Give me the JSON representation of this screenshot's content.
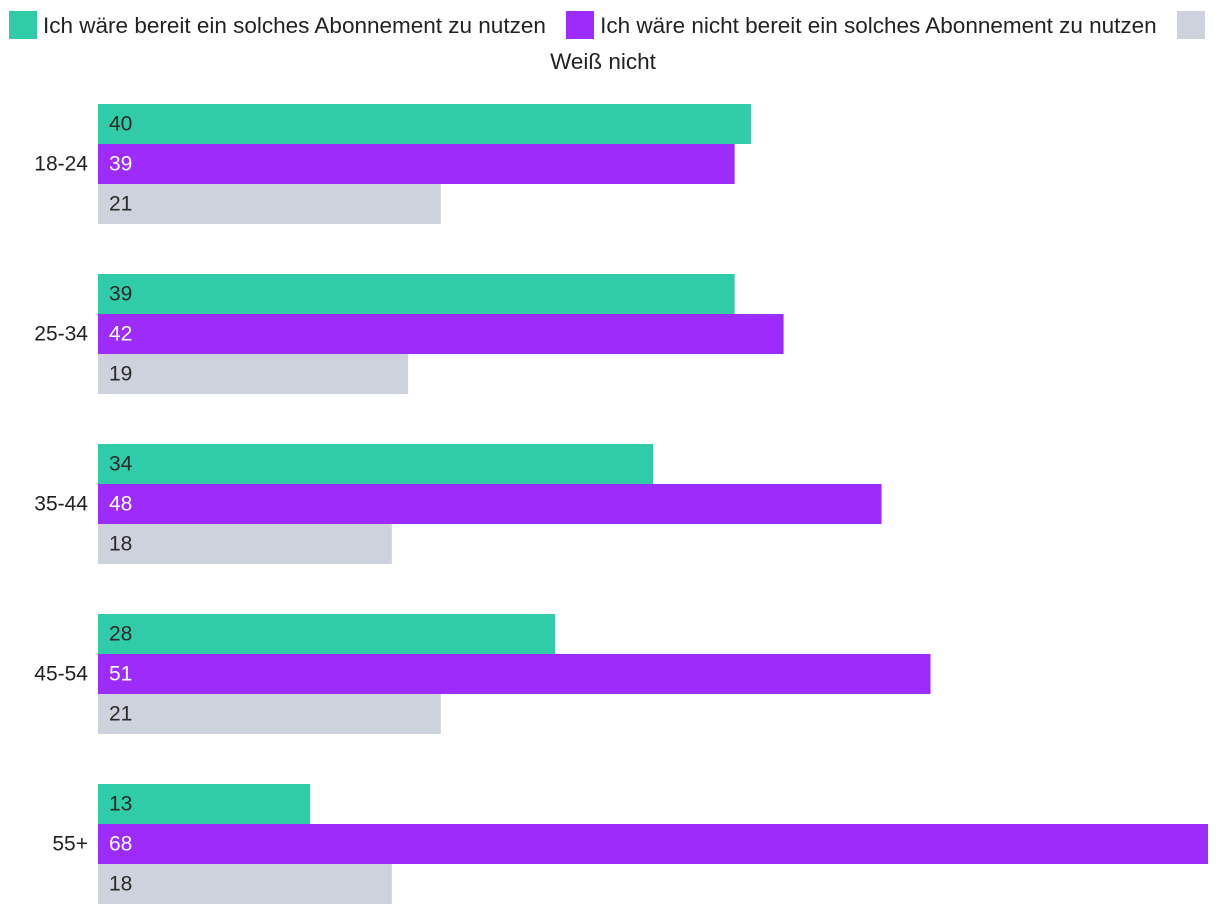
{
  "chart_data": {
    "type": "bar",
    "orientation": "horizontal",
    "categories": [
      "18-24",
      "25-34",
      "35-44",
      "45-54",
      "55+"
    ],
    "series": [
      {
        "name": "Ich wäre bereit ein solches Abonnement zu nutzen",
        "color": "#30cba7",
        "label_color": "#2a2a2a",
        "values": [
          40,
          39,
          34,
          28,
          13
        ]
      },
      {
        "name": "Ich wäre nicht bereit ein solches Abonnement zu nutzen",
        "color": "#9d2cfb",
        "label_color": "#ffffff",
        "values": [
          39,
          42,
          48,
          51,
          68
        ]
      },
      {
        "name": "Weiß nicht",
        "color": "#ced2dc",
        "label_color": "#2a2a2a",
        "values": [
          21,
          19,
          18,
          21,
          18
        ]
      }
    ],
    "xlim": [
      0,
      68
    ],
    "grid": false,
    "legend_position": "top-center"
  }
}
